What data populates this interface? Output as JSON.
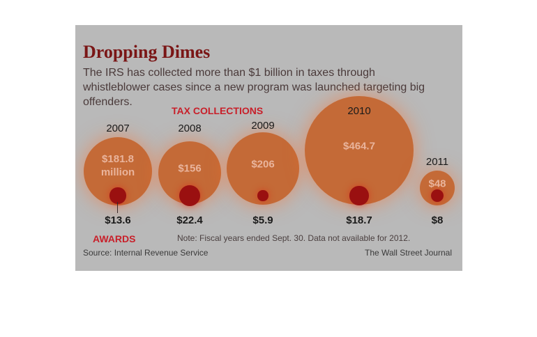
{
  "header": {
    "title": "Dropping Dimes",
    "subtitle": "The IRS has collected more than $1 billion in taxes through whistleblower cases since a new program was launched targeting big offenders."
  },
  "labels": {
    "tax_collections": "TAX COLLECTIONS",
    "awards": "AWARDS"
  },
  "footer": {
    "note": "Note: Fiscal years ended Sept. 30. Data not available for 2012.",
    "source": "Source: Internal Revenue Service",
    "credit": "The Wall Street Journal"
  },
  "colors": {
    "tax_bubble": "#c46a37",
    "award_bubble": "#9a1010",
    "title": "#7a1616",
    "accent_label": "#c8202a",
    "background": "#b9b9b9"
  },
  "chart_data": {
    "type": "bubble",
    "categories": [
      "2007",
      "2008",
      "2009",
      "2010",
      "2011"
    ],
    "series": [
      {
        "name": "TAX COLLECTIONS",
        "values": [
          181.8,
          156,
          206,
          464.7,
          48
        ],
        "labels": [
          "$181.8",
          "$156",
          "$206",
          "$464.7",
          "$48"
        ]
      },
      {
        "name": "AWARDS",
        "values": [
          13.6,
          22.4,
          5.9,
          18.7,
          8
        ],
        "labels": [
          "$13.6",
          "$22.4",
          "$5.9",
          "$18.7",
          "$8"
        ]
      }
    ],
    "first_value_unit": "million"
  }
}
